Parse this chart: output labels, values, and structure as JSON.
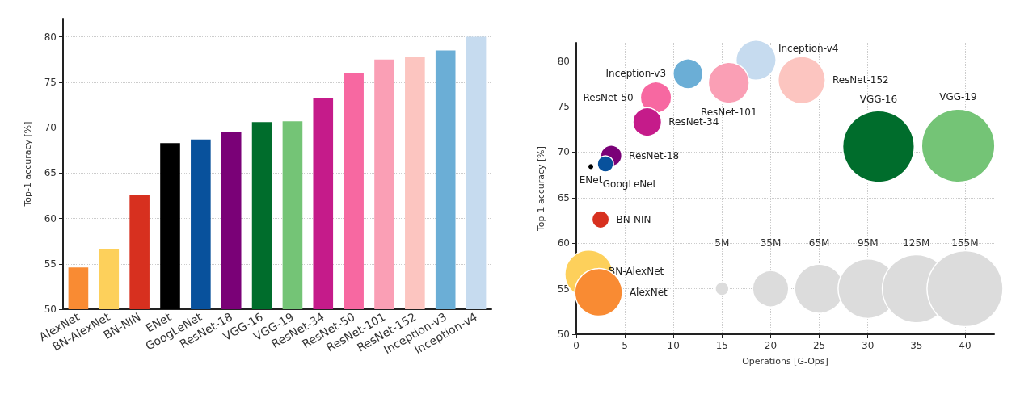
{
  "chart_data": [
    {
      "type": "bar",
      "ylabel": "Top-1 accuracy [%]",
      "categories": [
        "AlexNet",
        "BN-AlexNet",
        "BN-NIN",
        "ENet",
        "GoogLeNet",
        "ResNet-18",
        "VGG-16",
        "VGG-19",
        "ResNet-34",
        "ResNet-50",
        "ResNet-101",
        "ResNet-152",
        "Inception-v3",
        "Inception-v4"
      ],
      "values": [
        54.6,
        56.6,
        62.6,
        68.3,
        68.7,
        69.5,
        70.6,
        70.7,
        73.3,
        76.0,
        77.5,
        77.8,
        78.5,
        80.0
      ],
      "colors": [
        "#f98b33",
        "#fdd05b",
        "#d7301f",
        "#000000",
        "#08519c",
        "#7a0177",
        "#006d2c",
        "#74c476",
        "#c51b8a",
        "#f768a1",
        "#fa9fb5",
        "#fcc5c0",
        "#6baed6",
        "#c6dbef"
      ],
      "ylim": [
        50,
        82
      ],
      "yticks": [
        50,
        55,
        60,
        65,
        70,
        75,
        80
      ],
      "grid": "y"
    },
    {
      "type": "bubble",
      "xlabel": "Operations [G-Ops]",
      "ylabel": "Top-1 accuracy [%]",
      "xlim": [
        0,
        43
      ],
      "xticks": [
        0,
        5,
        10,
        15,
        20,
        25,
        30,
        35,
        40
      ],
      "ylim": [
        50,
        82
      ],
      "yticks": [
        50,
        55,
        60,
        65,
        70,
        75,
        80
      ],
      "grid": true,
      "size_legend": [
        {
          "value": 5,
          "label": "5M"
        },
        {
          "value": 35,
          "label": "35M"
        },
        {
          "value": 65,
          "label": "65M"
        },
        {
          "value": 95,
          "label": "95M"
        },
        {
          "value": 125,
          "label": "125M"
        },
        {
          "value": 155,
          "label": "155M"
        }
      ],
      "series": [
        {
          "name": "AlexNet",
          "color": "#f98b33",
          "x": [
            2.3
          ],
          "values": [
            54.6
          ],
          "sizes": [
            61
          ]
        },
        {
          "name": "BN-AlexNet",
          "color": "#fdd05b",
          "x": [
            1.3
          ],
          "values": [
            56.6
          ],
          "sizes": [
            62
          ]
        },
        {
          "name": "BN-NIN",
          "color": "#d7301f",
          "x": [
            2.5
          ],
          "values": [
            62.6
          ],
          "sizes": [
            8
          ]
        },
        {
          "name": "ENet",
          "color": "#000000",
          "x": [
            1.5
          ],
          "values": [
            68.4
          ],
          "sizes": [
            1
          ]
        },
        {
          "name": "GoogLeNet",
          "color": "#08519c",
          "x": [
            3.0
          ],
          "values": [
            68.7
          ],
          "sizes": [
            7
          ]
        },
        {
          "name": "ResNet-18",
          "color": "#7a0177",
          "x": [
            3.6
          ],
          "values": [
            69.6
          ],
          "sizes": [
            12
          ]
        },
        {
          "name": "VGG-16",
          "color": "#006d2c",
          "x": [
            31.1
          ],
          "values": [
            70.6
          ],
          "sizes": [
            138
          ]
        },
        {
          "name": "VGG-19",
          "color": "#74c476",
          "x": [
            39.3
          ],
          "values": [
            70.7
          ],
          "sizes": [
            144
          ]
        },
        {
          "name": "ResNet-34",
          "color": "#c51b8a",
          "x": [
            7.3
          ],
          "values": [
            73.3
          ],
          "sizes": [
            22
          ]
        },
        {
          "name": "ResNet-50",
          "color": "#f768a1",
          "x": [
            8.2
          ],
          "values": [
            76.0
          ],
          "sizes": [
            26
          ]
        },
        {
          "name": "ResNet-101",
          "color": "#fa9fb5",
          "x": [
            15.7
          ],
          "values": [
            77.6
          ],
          "sizes": [
            45
          ]
        },
        {
          "name": "ResNet-152",
          "color": "#fcc5c0",
          "x": [
            23.2
          ],
          "values": [
            77.9
          ],
          "sizes": [
            60
          ]
        },
        {
          "name": "Inception-v3",
          "color": "#6baed6",
          "x": [
            11.5
          ],
          "values": [
            78.6
          ],
          "sizes": [
            24
          ]
        },
        {
          "name": "Inception-v4",
          "color": "#c6dbef",
          "x": [
            18.5
          ],
          "values": [
            80.1
          ],
          "sizes": [
            43
          ]
        }
      ]
    }
  ]
}
